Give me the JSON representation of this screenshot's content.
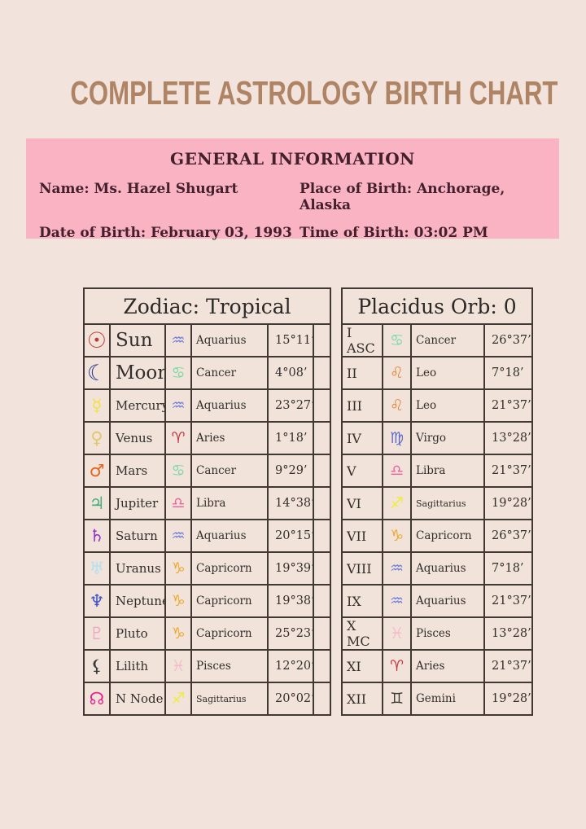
{
  "page_title": "COMPLETE ASTROLOGY BIRTH CHART",
  "general_info": {
    "heading": "GENERAL INFORMATION",
    "name": "Name: Ms. Hazel Shugart",
    "date_of_birth": "Date of Birth: February 03, 1993",
    "place_of_birth": "Place of Birth: Anchorage, Alaska",
    "time_of_birth": "Time of Birth: 03:02 PM"
  },
  "colors": {
    "page_background": "#f2e4dc",
    "title_brown": "#ae8465",
    "info_panel_pink": "#f9b3c2",
    "info_text": "#44202d",
    "table_border": "#413834",
    "cell_background": "#f1e3da",
    "table_text": "#332e2b"
  },
  "zodiac_table": {
    "header": "Zodiac: Tropical",
    "rows": [
      {
        "planet": "Sun",
        "planet_glyph": "☉",
        "planet_color": "#c13a33",
        "sign": "Aquarius",
        "sign_glyph": "♒",
        "sign_color": "#7080d8",
        "degrees": "15°11’",
        "big": true
      },
      {
        "planet": "Moon",
        "planet_glyph": "☾",
        "planet_color": "#2d3a8c",
        "sign": "Cancer",
        "sign_glyph": "♋",
        "sign_color": "#79d9a2",
        "degrees": "4°08’",
        "big": true
      },
      {
        "planet": "Mercury",
        "planet_glyph": "☿",
        "planet_color": "#f2e23c",
        "sign": "Aquarius",
        "sign_glyph": "♒",
        "sign_color": "#7080d8",
        "degrees": "23°27’"
      },
      {
        "planet": "Venus",
        "planet_glyph": "♀",
        "planet_color": "#e3c76f",
        "sign": "Aries",
        "sign_glyph": "♈",
        "sign_color": "#c23540",
        "degrees": "1°18’"
      },
      {
        "planet": "Mars",
        "planet_glyph": "♂",
        "planet_color": "#e5641f",
        "sign": "Cancer",
        "sign_glyph": "♋",
        "sign_color": "#79d9a2",
        "degrees": "9°29’"
      },
      {
        "planet": "Jupiter",
        "planet_glyph": "♃",
        "planet_color": "#44b078",
        "sign": "Libra",
        "sign_glyph": "♎",
        "sign_color": "#f0609e",
        "degrees": "14°38’"
      },
      {
        "planet": "Saturn",
        "planet_glyph": "♄",
        "planet_color": "#9033c9",
        "sign": "Aquarius",
        "sign_glyph": "♒",
        "sign_color": "#7080d8",
        "degrees": "20°15’"
      },
      {
        "planet": "Uranus",
        "planet_glyph": "♅",
        "planet_color": "#b5e0ef",
        "sign": "Capricorn",
        "sign_glyph": "♑",
        "sign_color": "#efa82d",
        "degrees": "19°39’"
      },
      {
        "planet": "Neptune",
        "planet_glyph": "♆",
        "planet_color": "#4150c8",
        "sign": "Capricorn",
        "sign_glyph": "♑",
        "sign_color": "#efa82d",
        "degrees": "19°38’"
      },
      {
        "planet": "Pluto",
        "planet_glyph": "♇",
        "planet_color": "#f0a9c4",
        "sign": "Capricorn",
        "sign_glyph": "♑",
        "sign_color": "#efa82d",
        "degrees": "25°23’"
      },
      {
        "planet": "Lilith",
        "planet_glyph": "⚸",
        "planet_color": "#3a3a3a",
        "sign": "Pisces",
        "sign_glyph": "♓",
        "sign_color": "#f2bccb",
        "degrees": "12°20’"
      },
      {
        "planet": "N Node",
        "planet_glyph": "☊",
        "planet_color": "#ec1f8e",
        "sign": "Sagittarius",
        "sign_glyph": "♐",
        "sign_color": "#f2ea3d",
        "degrees": "20°02’"
      }
    ]
  },
  "houses_table": {
    "header": "Placidus Orb: 0",
    "rows": [
      {
        "house": "I ASC",
        "sign": "Cancer",
        "sign_glyph": "♋",
        "sign_color": "#79d9a2",
        "degrees": "26°37’"
      },
      {
        "house": "II",
        "sign": "Leo",
        "sign_glyph": "♌",
        "sign_color": "#e8873c",
        "degrees": "7°18’"
      },
      {
        "house": "III",
        "sign": "Leo",
        "sign_glyph": "♌",
        "sign_color": "#e8873c",
        "degrees": "21°37’"
      },
      {
        "house": "IV",
        "sign": "Virgo",
        "sign_glyph": "♍",
        "sign_color": "#5f6bc8",
        "degrees": "13°28’"
      },
      {
        "house": "V",
        "sign": "Libra",
        "sign_glyph": "♎",
        "sign_color": "#f0609e",
        "degrees": "21°37’"
      },
      {
        "house": "VI",
        "sign": "Sagittarius",
        "sign_glyph": "♐",
        "sign_color": "#f2ea3d",
        "degrees": "19°28’"
      },
      {
        "house": "VII",
        "sign": "Capricorn",
        "sign_glyph": "♑",
        "sign_color": "#efa82d",
        "degrees": "26°37’"
      },
      {
        "house": "VIII",
        "sign": "Aquarius",
        "sign_glyph": "♒",
        "sign_color": "#7080d8",
        "degrees": "7°18’"
      },
      {
        "house": "IX",
        "sign": "Aquarius",
        "sign_glyph": "♒",
        "sign_color": "#7080d8",
        "degrees": "21°37’"
      },
      {
        "house": "X MC",
        "sign": "Pisces",
        "sign_glyph": "♓",
        "sign_color": "#f2bccb",
        "degrees": "13°28’"
      },
      {
        "house": "XI",
        "sign": "Aries",
        "sign_glyph": "♈",
        "sign_color": "#c23540",
        "degrees": "21°37’"
      },
      {
        "house": "XII",
        "sign": "Gemini",
        "sign_glyph": "♊",
        "sign_color": "#3c3835",
        "degrees": "19°28’"
      }
    ]
  }
}
